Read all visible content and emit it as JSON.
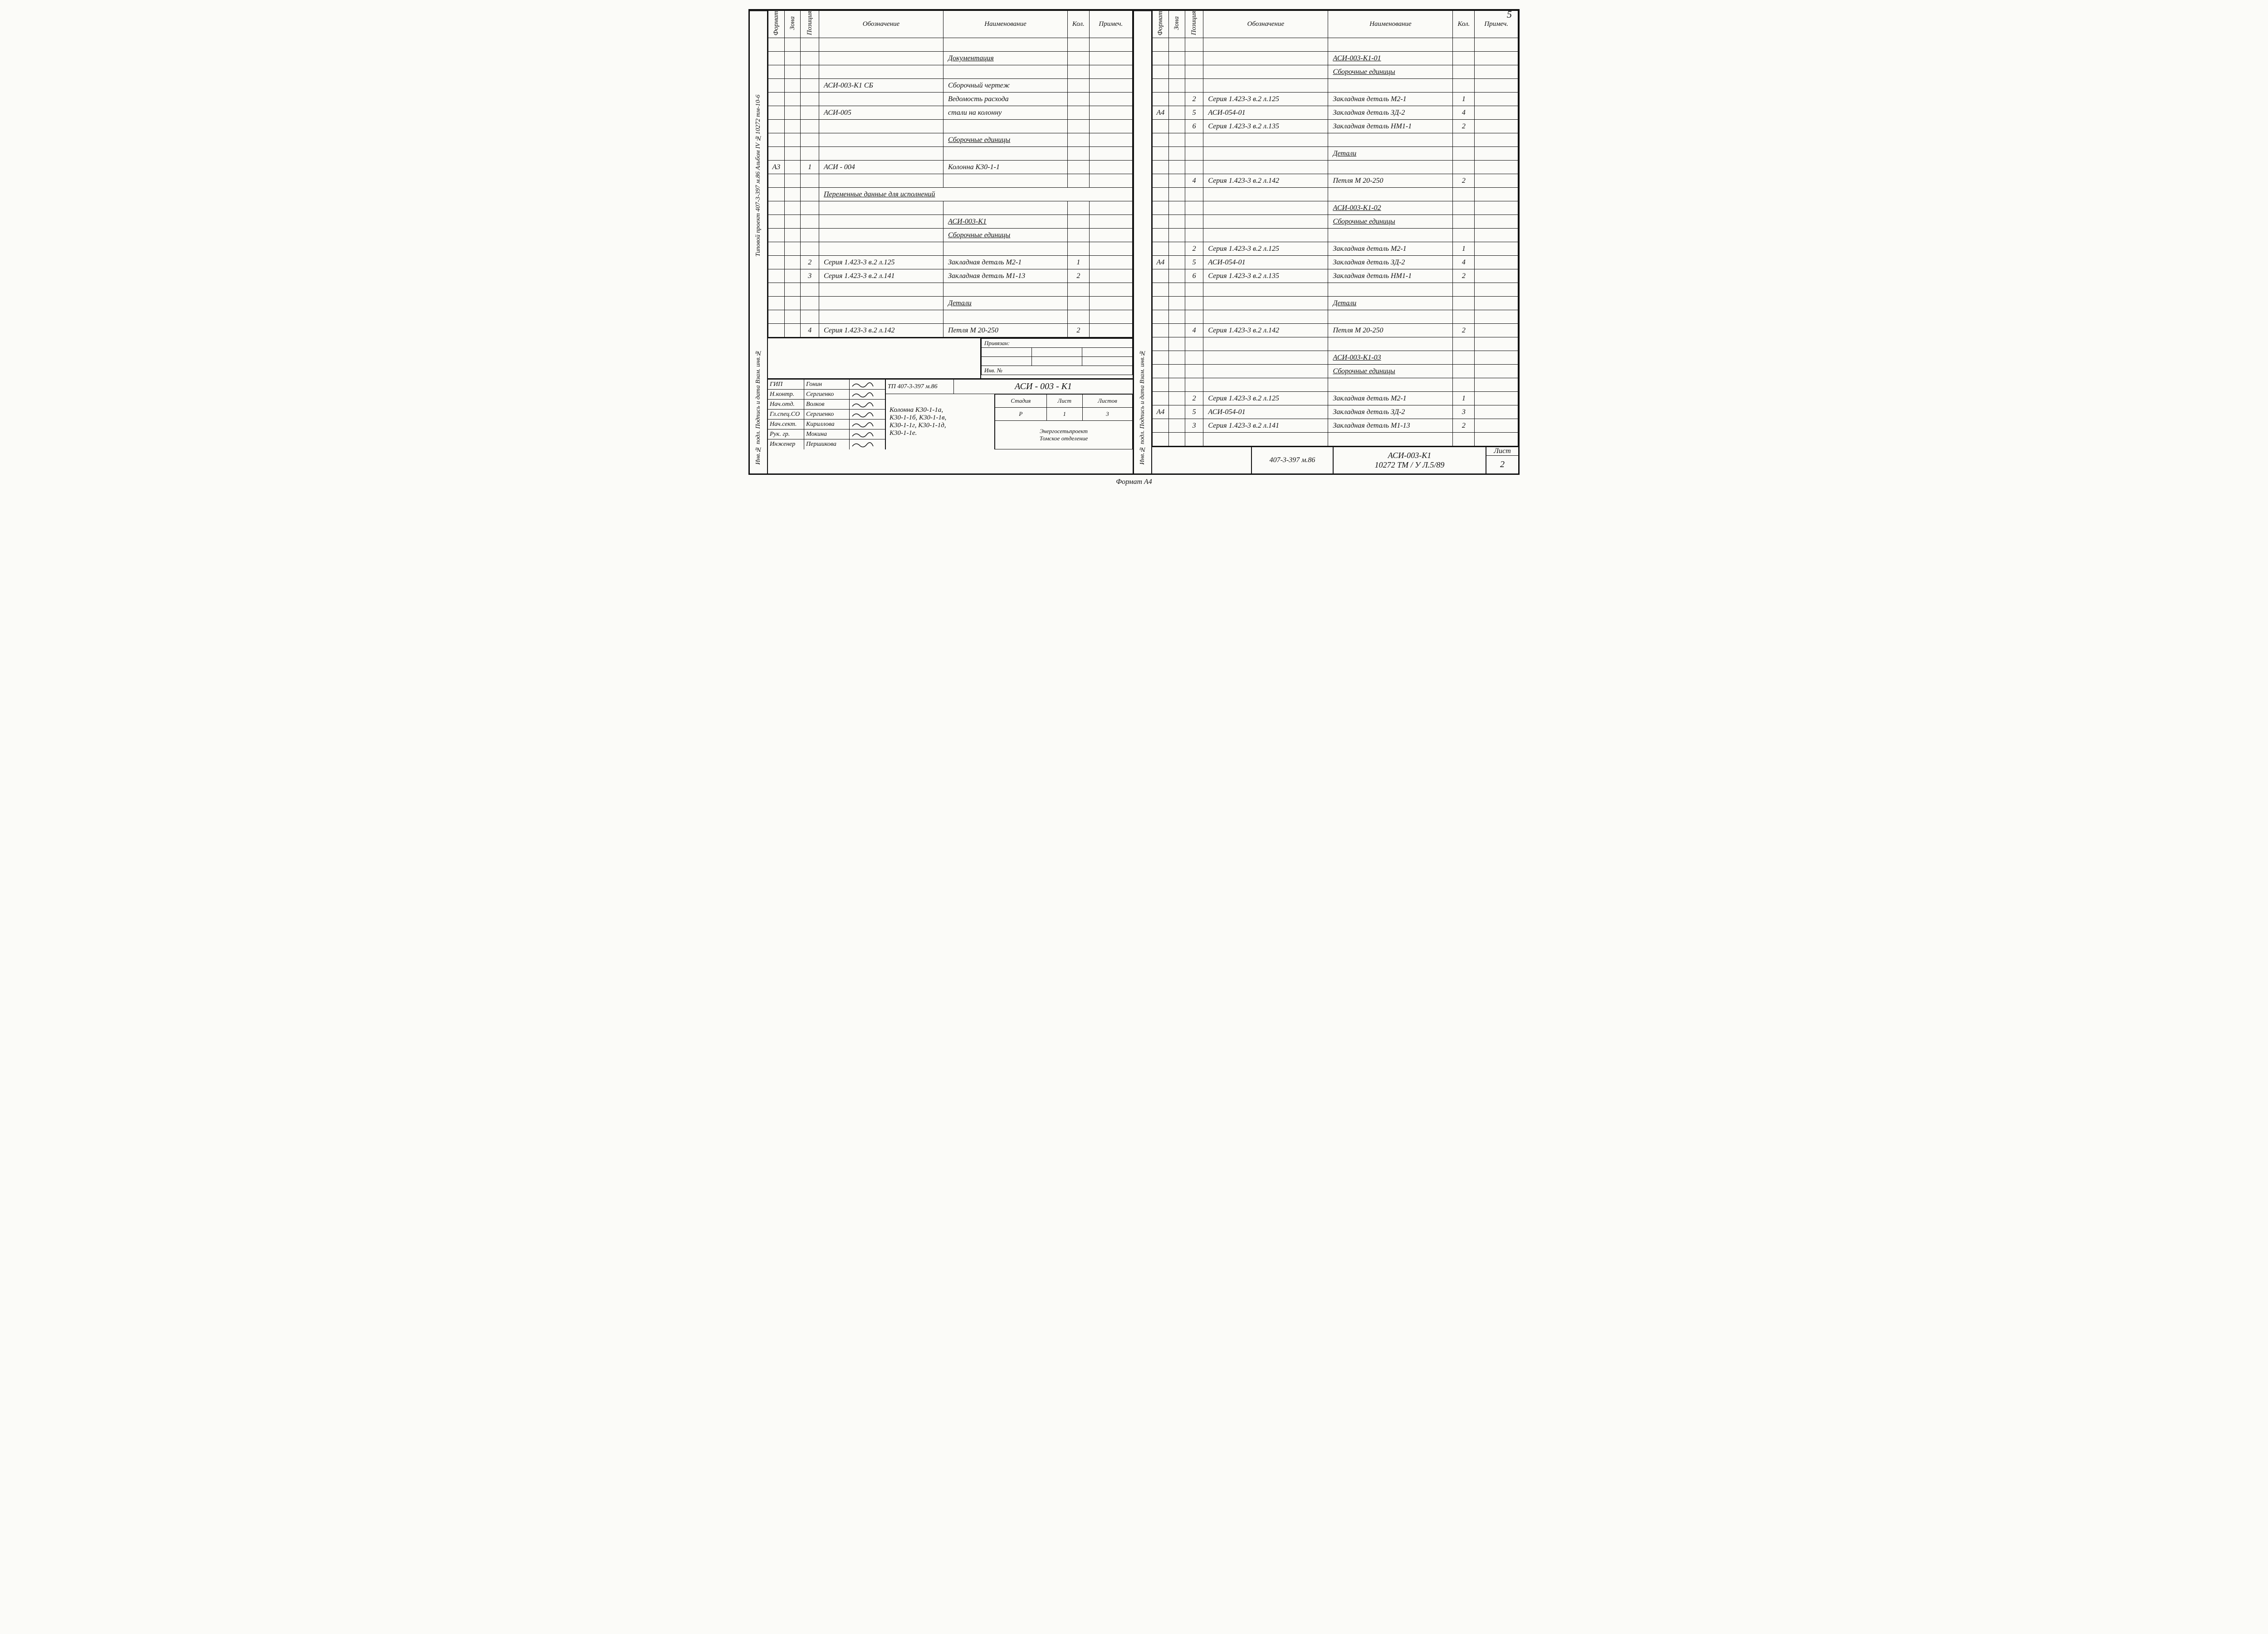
{
  "page_number_top": "5",
  "footer": "Формат А4",
  "columns": {
    "format": "Формат",
    "zone": "Зона",
    "pos": "Позиция",
    "designation": "Обозначение",
    "name": "Наименование",
    "qty": "Кол.",
    "note": "Примеч."
  },
  "left": {
    "side_labels": [
      "Типовой проект 407-3-397 м.86   Альбом IV №10272 тм-10-6",
      "Инв.№ подл.   Подпись и дата   Взам. инв.№"
    ],
    "rows": [
      {
        "fmt": "",
        "zone": "",
        "pos": "",
        "desig": "",
        "name": "",
        "qty": "",
        "note": ""
      },
      {
        "fmt": "",
        "zone": "",
        "pos": "",
        "desig": "",
        "name": "Документация",
        "u": true,
        "qty": "",
        "note": ""
      },
      {
        "fmt": "",
        "zone": "",
        "pos": "",
        "desig": "",
        "name": "",
        "qty": "",
        "note": ""
      },
      {
        "fmt": "",
        "zone": "",
        "pos": "",
        "desig": "АСИ-003-К1 СБ",
        "name": "Сборочный чертеж",
        "qty": "",
        "note": ""
      },
      {
        "fmt": "",
        "zone": "",
        "pos": "",
        "desig": "",
        "name": "Ведомость расхода",
        "qty": "",
        "note": ""
      },
      {
        "fmt": "",
        "zone": "",
        "pos": "",
        "desig": "АСИ-005",
        "name": "стали на колонну",
        "qty": "",
        "note": ""
      },
      {
        "fmt": "",
        "zone": "",
        "pos": "",
        "desig": "",
        "name": "",
        "qty": "",
        "note": ""
      },
      {
        "fmt": "",
        "zone": "",
        "pos": "",
        "desig": "",
        "name": "Сборочные единицы",
        "u": true,
        "qty": "",
        "note": ""
      },
      {
        "fmt": "",
        "zone": "",
        "pos": "",
        "desig": "",
        "name": "",
        "qty": "",
        "note": ""
      },
      {
        "fmt": "А3",
        "zone": "",
        "pos": "1",
        "desig": "АСИ - 004",
        "name": "Колонна К30-1-1",
        "qty": "",
        "note": ""
      },
      {
        "fmt": "",
        "zone": "",
        "pos": "",
        "desig": "",
        "name": "",
        "qty": "",
        "note": ""
      },
      {
        "fmt": "",
        "zone": "",
        "pos": "",
        "desig": "Переменные   данные   для   исполнений",
        "span": true
      },
      {
        "fmt": "",
        "zone": "",
        "pos": "",
        "desig": "",
        "name": "",
        "qty": "",
        "note": ""
      },
      {
        "fmt": "",
        "zone": "",
        "pos": "",
        "desig": "",
        "name": "АСИ-003-К1",
        "u": true,
        "qty": "",
        "note": ""
      },
      {
        "fmt": "",
        "zone": "",
        "pos": "",
        "desig": "",
        "name": "Сборочные единицы",
        "u": true,
        "qty": "",
        "note": ""
      },
      {
        "fmt": "",
        "zone": "",
        "pos": "",
        "desig": "",
        "name": "",
        "qty": "",
        "note": ""
      },
      {
        "fmt": "",
        "zone": "",
        "pos": "2",
        "desig": "Серия 1.423-3 в.2 л.125",
        "name": "Закладная деталь М2-1",
        "qty": "1",
        "note": ""
      },
      {
        "fmt": "",
        "zone": "",
        "pos": "3",
        "desig": "Серия 1.423-3 в.2 л.141",
        "name": "Закладная деталь М1-13",
        "qty": "2",
        "note": ""
      },
      {
        "fmt": "",
        "zone": "",
        "pos": "",
        "desig": "",
        "name": "",
        "qty": "",
        "note": ""
      },
      {
        "fmt": "",
        "zone": "",
        "pos": "",
        "desig": "",
        "name": "Детали",
        "u": true,
        "qty": "",
        "note": ""
      },
      {
        "fmt": "",
        "zone": "",
        "pos": "",
        "desig": "",
        "name": "",
        "qty": "",
        "note": ""
      },
      {
        "fmt": "",
        "zone": "",
        "pos": "4",
        "desig": "Серия 1.423-3 в.2 л.142",
        "name": "Петля   М 20-250",
        "qty": "2",
        "note": ""
      }
    ],
    "privязan_label": "Привязан:",
    "inv_label": "Инв. №",
    "approvals": [
      {
        "role": "ГИП",
        "name": "Гонин"
      },
      {
        "role": "Н.контр.",
        "name": "Сергиенко"
      },
      {
        "role": "Нач.отд.",
        "name": "Волков"
      },
      {
        "role": "Гл.спец.СО",
        "name": "Сергиенко"
      },
      {
        "role": "Нач.сект.",
        "name": "Кириллова"
      },
      {
        "role": "Рук. гр.",
        "name": "Мокина"
      },
      {
        "role": "Инженер",
        "name": "Першикова"
      }
    ],
    "tp_label": "ТП 407-3-397 м.86",
    "drawing_code": "АСИ - 003 - К1",
    "item_desc": "Колонна К30-1-1а,\nК30-1-1б, К30-1-1в,\nК30-1-1г, К30-1-1д,\nК30-1-1е.",
    "stage_hdr": {
      "stage": "Стадия",
      "sheet": "Лист",
      "sheets": "Листов",
      "stage_v": "Р",
      "sheet_v": "1",
      "sheets_v": "3"
    },
    "org": "Энергосетьпроект\nТомское отделение"
  },
  "right": {
    "side_labels": [
      "Инв.№ подл.   Подпись и дата   Взам. инв.№"
    ],
    "rows": [
      {
        "fmt": "",
        "zone": "",
        "pos": "",
        "desig": "",
        "name": "",
        "qty": "",
        "note": ""
      },
      {
        "fmt": "",
        "zone": "",
        "pos": "",
        "desig": "",
        "name": "АСИ-003-К1-01",
        "u": true,
        "qty": "",
        "note": ""
      },
      {
        "fmt": "",
        "zone": "",
        "pos": "",
        "desig": "",
        "name": "Сборочные единицы",
        "u": true,
        "qty": "",
        "note": ""
      },
      {
        "fmt": "",
        "zone": "",
        "pos": "",
        "desig": "",
        "name": "",
        "qty": "",
        "note": ""
      },
      {
        "fmt": "",
        "zone": "",
        "pos": "2",
        "desig": "Серия 1.423-3 в.2 л.125",
        "name": "Закладная деталь М2-1",
        "qty": "1",
        "note": ""
      },
      {
        "fmt": "А4",
        "zone": "",
        "pos": "5",
        "desig": "АСИ-054-01",
        "name": "Закладная деталь ЗД-2",
        "qty": "4",
        "note": ""
      },
      {
        "fmt": "",
        "zone": "",
        "pos": "6",
        "desig": "Серия 1.423-3 в.2 л.135",
        "name": "Закладная деталь НМ1-1",
        "qty": "2",
        "note": ""
      },
      {
        "fmt": "",
        "zone": "",
        "pos": "",
        "desig": "",
        "name": "",
        "qty": "",
        "note": ""
      },
      {
        "fmt": "",
        "zone": "",
        "pos": "",
        "desig": "",
        "name": "Детали",
        "u": true,
        "qty": "",
        "note": ""
      },
      {
        "fmt": "",
        "zone": "",
        "pos": "",
        "desig": "",
        "name": "",
        "qty": "",
        "note": ""
      },
      {
        "fmt": "",
        "zone": "",
        "pos": "4",
        "desig": "Серия 1.423-3 в.2 л.142",
        "name": "Петля   М 20-250",
        "qty": "2",
        "note": ""
      },
      {
        "fmt": "",
        "zone": "",
        "pos": "",
        "desig": "",
        "name": "",
        "qty": "",
        "note": ""
      },
      {
        "fmt": "",
        "zone": "",
        "pos": "",
        "desig": "",
        "name": "АСИ-003-К1-02",
        "u": true,
        "qty": "",
        "note": ""
      },
      {
        "fmt": "",
        "zone": "",
        "pos": "",
        "desig": "",
        "name": "Сборочные единицы",
        "u": true,
        "qty": "",
        "note": ""
      },
      {
        "fmt": "",
        "zone": "",
        "pos": "",
        "desig": "",
        "name": "",
        "qty": "",
        "note": ""
      },
      {
        "fmt": "",
        "zone": "",
        "pos": "2",
        "desig": "Серия 1.423-3 в.2 л.125",
        "name": "Закладная деталь М2-1",
        "qty": "1",
        "note": ""
      },
      {
        "fmt": "А4",
        "zone": "",
        "pos": "5",
        "desig": "АСИ-054-01",
        "name": "Закладная деталь ЗД-2",
        "qty": "4",
        "note": ""
      },
      {
        "fmt": "",
        "zone": "",
        "pos": "6",
        "desig": "Серия 1.423-3 в.2 л.135",
        "name": "Закладная деталь НМ1-1",
        "qty": "2",
        "note": ""
      },
      {
        "fmt": "",
        "zone": "",
        "pos": "",
        "desig": "",
        "name": "",
        "qty": "",
        "note": ""
      },
      {
        "fmt": "",
        "zone": "",
        "pos": "",
        "desig": "",
        "name": "Детали",
        "u": true,
        "qty": "",
        "note": ""
      },
      {
        "fmt": "",
        "zone": "",
        "pos": "",
        "desig": "",
        "name": "",
        "qty": "",
        "note": ""
      },
      {
        "fmt": "",
        "zone": "",
        "pos": "4",
        "desig": "Серия 1.423-3 в.2 л.142",
        "name": "Петля   М 20-250",
        "qty": "2",
        "note": ""
      },
      {
        "fmt": "",
        "zone": "",
        "pos": "",
        "desig": "",
        "name": "",
        "qty": "",
        "note": ""
      },
      {
        "fmt": "",
        "zone": "",
        "pos": "",
        "desig": "",
        "name": "АСИ-003-К1-03",
        "u": true,
        "qty": "",
        "note": ""
      },
      {
        "fmt": "",
        "zone": "",
        "pos": "",
        "desig": "",
        "name": "Сборочные единицы",
        "u": true,
        "qty": "",
        "note": ""
      },
      {
        "fmt": "",
        "zone": "",
        "pos": "",
        "desig": "",
        "name": "",
        "qty": "",
        "note": ""
      },
      {
        "fmt": "",
        "zone": "",
        "pos": "2",
        "desig": "Серия 1.423-3 в.2 л.125",
        "name": "Закладная деталь М2-1",
        "qty": "1",
        "note": ""
      },
      {
        "fmt": "А4",
        "zone": "",
        "pos": "5",
        "desig": "АСИ-054-01",
        "name": "Закладная деталь ЗД-2",
        "qty": "3",
        "note": ""
      },
      {
        "fmt": "",
        "zone": "",
        "pos": "3",
        "desig": "Серия 1.423-3 в.2 л.141",
        "name": "Закладная деталь М1-13",
        "qty": "2",
        "note": ""
      },
      {
        "fmt": "",
        "zone": "",
        "pos": "",
        "desig": "",
        "name": "",
        "qty": "",
        "note": ""
      }
    ],
    "bottom": {
      "proj": "407-3-397 м.86",
      "code": "АСИ-003-К1\n10272 ТМ / У Л.5/89",
      "sheet_lbl": "Лист",
      "sheet_no": "2"
    }
  }
}
